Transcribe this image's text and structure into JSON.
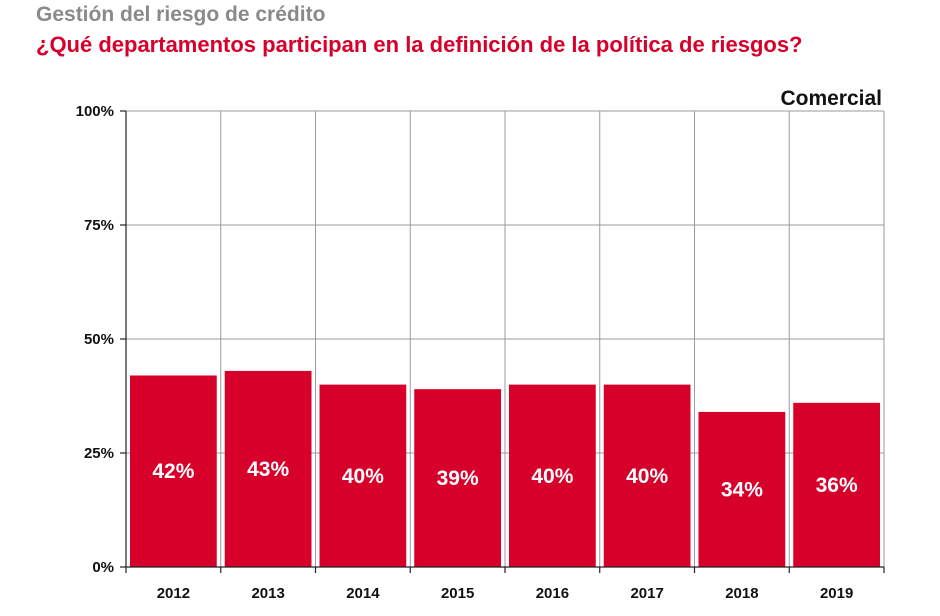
{
  "header": {
    "subtitle": "Gestión del riesgo de crédito",
    "title": "¿Qué departamentos participan en la definición de la política de riesgos?"
  },
  "chart_data": {
    "type": "bar",
    "title": "¿Qué departamentos participan en la definición de la política de riesgos?",
    "subtitle": "Gestión del riesgo de crédito",
    "categories": [
      "2012",
      "2013",
      "2014",
      "2015",
      "2016",
      "2017",
      "2018",
      "2019"
    ],
    "series": [
      {
        "name": "Comercial",
        "values": [
          42,
          43,
          40,
          39,
          40,
          40,
          34,
          36
        ]
      }
    ],
    "data_labels": [
      "42%",
      "43%",
      "40%",
      "39%",
      "40%",
      "40%",
      "34%",
      "36%"
    ],
    "ylim": [
      0,
      100
    ],
    "yticks": [
      0,
      25,
      50,
      75,
      100
    ],
    "ytick_labels": [
      "0%",
      "25%",
      "50%",
      "75%",
      "100%"
    ],
    "xlabel": "",
    "ylabel": "",
    "grid": true,
    "legend": "top-right",
    "colors": {
      "bar": "#d6002a",
      "grid": "#9a9a9a",
      "axis": "#222222",
      "label": "#ffffff"
    }
  }
}
